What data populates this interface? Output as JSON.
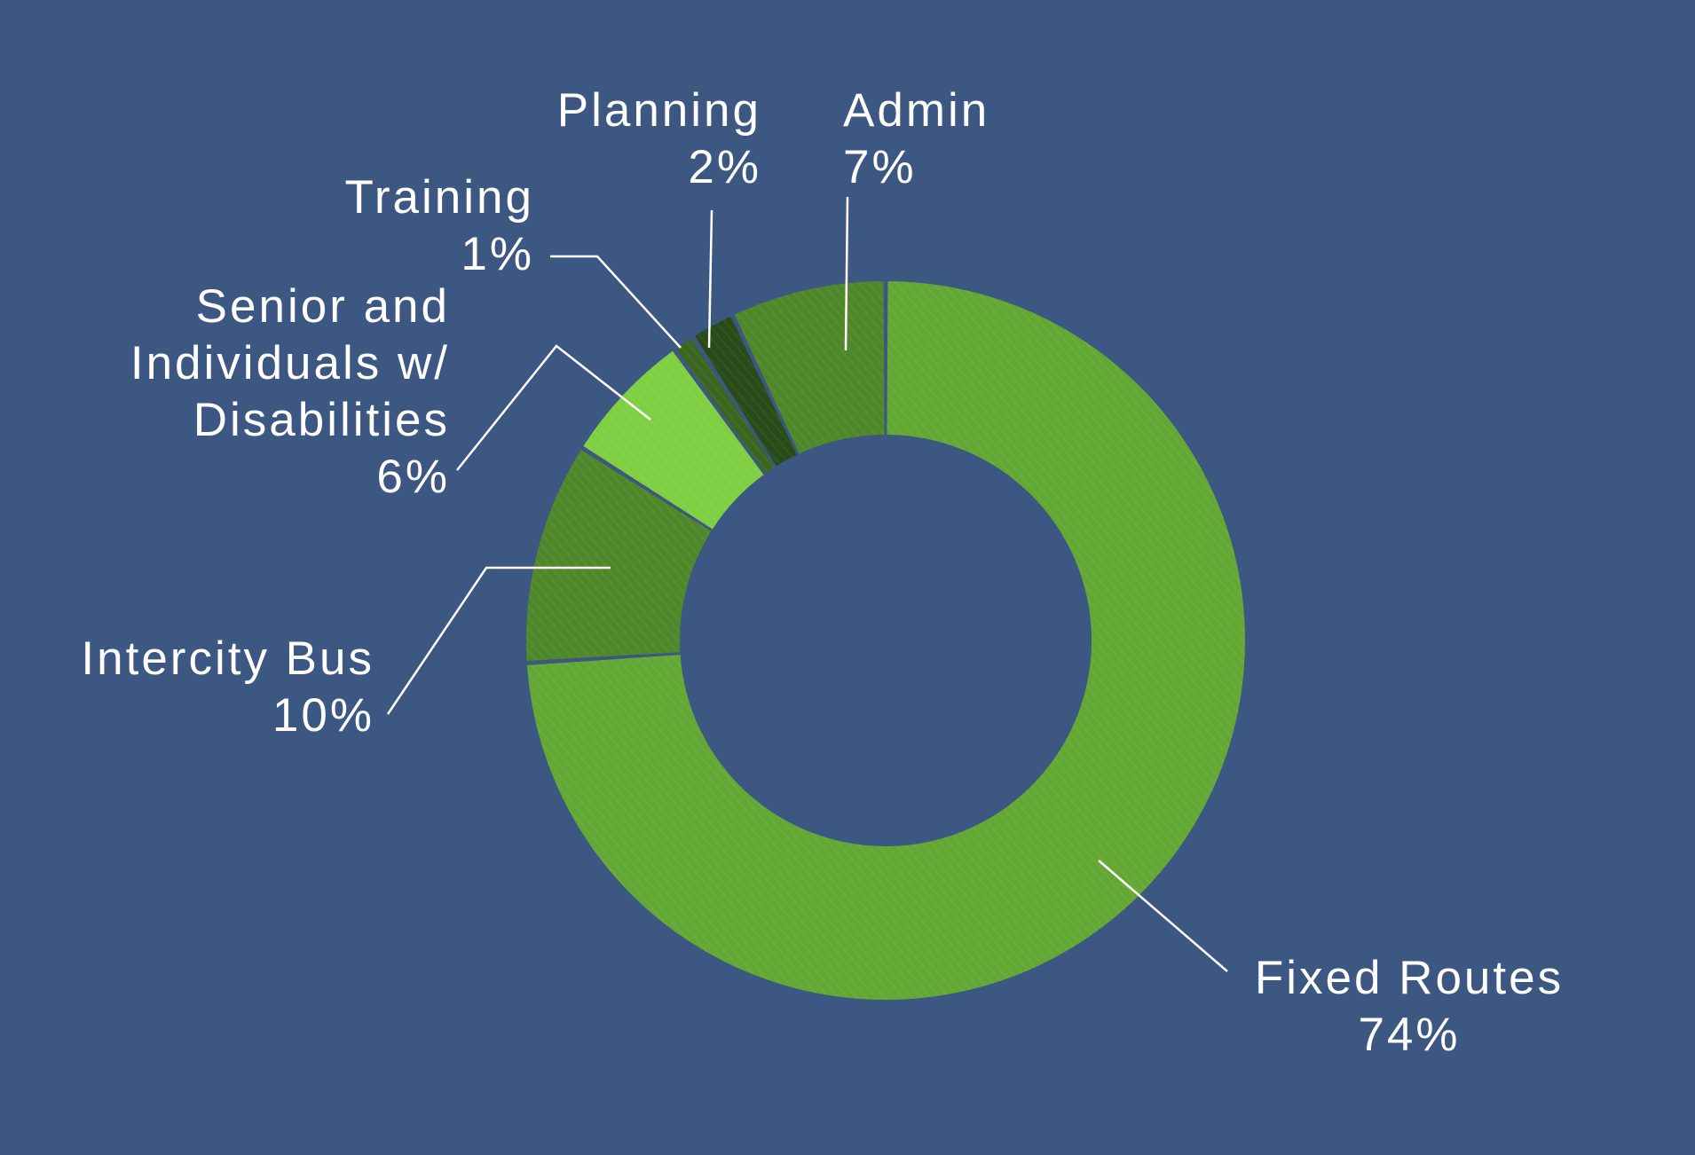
{
  "background": "#3c5782",
  "chart_data": {
    "type": "pie",
    "variant": "donut",
    "title": "",
    "legend": "none",
    "slices": [
      {
        "label_lines": [
          "Fixed Routes"
        ],
        "value_label": "74%",
        "value": 74,
        "color": "#63a834"
      },
      {
        "label_lines": [
          "Intercity Bus"
        ],
        "value_label": "10%",
        "value": 10,
        "color": "#4f882a"
      },
      {
        "label_lines": [
          "Senior and",
          "Individuals w/",
          "Disabilities"
        ],
        "value_label": "6%",
        "value": 6,
        "color": "#7fcf42"
      },
      {
        "label_lines": [
          "Training"
        ],
        "value_label": "1%",
        "value": 1,
        "color": "#3a6620"
      },
      {
        "label_lines": [
          "Planning"
        ],
        "value_label": "2%",
        "value": 2,
        "color": "#284b17"
      },
      {
        "label_lines": [
          "Admin"
        ],
        "value_label": "7%",
        "value": 7,
        "color": "#4f882a"
      }
    ]
  }
}
